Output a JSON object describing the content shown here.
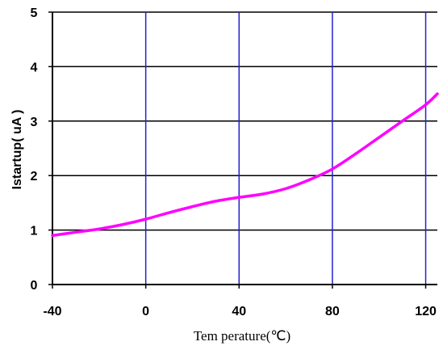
{
  "chart_data": {
    "type": "line",
    "xlabel": "Tem perature(℃)",
    "ylabel": "Istartup( uA )",
    "xlim": [
      -40,
      125
    ],
    "ylim": [
      0,
      5
    ],
    "x_ticks": [
      -40,
      0,
      40,
      80,
      120
    ],
    "y_ticks": [
      0,
      1,
      2,
      3,
      4,
      5
    ],
    "x_tick_labels": [
      "-40",
      "0",
      "40",
      "80",
      "120"
    ],
    "y_tick_labels": [
      "0",
      "1",
      "2",
      "3",
      "4",
      "5"
    ],
    "grid": "on",
    "legend": "none",
    "series": [
      {
        "x": [
          -40,
          -30,
          -20,
          -10,
          0,
          10,
          20,
          30,
          40,
          50,
          60,
          70,
          80,
          90,
          100,
          110,
          120,
          125
        ],
        "y": [
          0.9,
          0.96,
          1.02,
          1.1,
          1.2,
          1.32,
          1.43,
          1.53,
          1.6,
          1.66,
          1.76,
          1.92,
          2.12,
          2.4,
          2.7,
          3.0,
          3.3,
          3.5
        ]
      }
    ],
    "colors": {
      "series": "#ff00ff",
      "vertical_grid": "#2222cc",
      "horizontal_grid": "#000000",
      "axis": "#000000"
    }
  }
}
